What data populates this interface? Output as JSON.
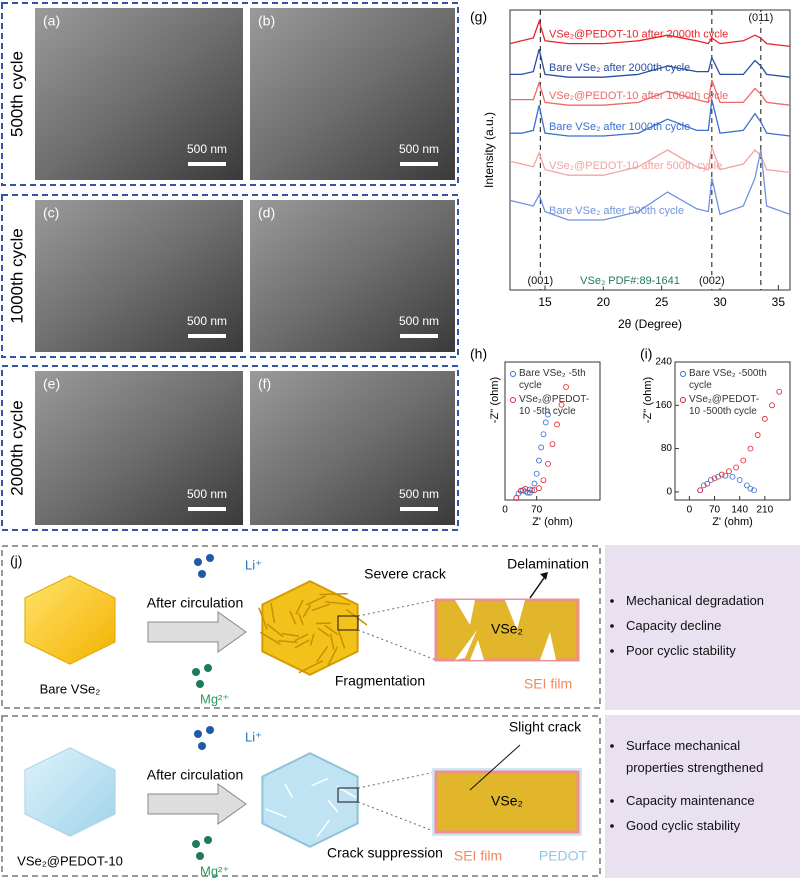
{
  "sem": {
    "rows": [
      {
        "label": "500th cycle",
        "images": [
          {
            "tag": "(a)",
            "scale": "500 nm"
          },
          {
            "tag": "(b)",
            "scale": "500 nm"
          }
        ]
      },
      {
        "label": "1000th cycle",
        "images": [
          {
            "tag": "(c)",
            "scale": "500 nm"
          },
          {
            "tag": "(d)",
            "scale": "500 nm"
          }
        ]
      },
      {
        "label": "2000th cycle",
        "images": [
          {
            "tag": "(e)",
            "scale": "500 nm"
          },
          {
            "tag": "(f)",
            "scale": "500 nm"
          }
        ]
      }
    ]
  },
  "chart_data": [
    {
      "type": "line",
      "panel": "(g)",
      "x_label": "2θ (Degree)",
      "y_label": "Intensity (a.u.)",
      "x": [
        12,
        13,
        14,
        14.5,
        15,
        17,
        20,
        23,
        25.5,
        28,
        29,
        29.3,
        30,
        32,
        33,
        33.5,
        34,
        36
      ],
      "series": [
        {
          "name": "VSe₂@PEDOT-10 after 2000th cycle",
          "color": "#e8242b",
          "values": [
            88,
            89,
            90,
            96,
            89,
            88,
            88,
            89,
            91,
            89,
            88,
            90,
            88,
            89,
            91,
            90,
            88,
            87
          ]
        },
        {
          "name": "Bare VSe₂ after 2000th cycle",
          "color": "#2b4ea2",
          "values": [
            77,
            77,
            78,
            86,
            77,
            76,
            76,
            77,
            80,
            78,
            78,
            83,
            77,
            77,
            82,
            80,
            77,
            76
          ]
        },
        {
          "name": "VSe₂@PEDOT-10 after 1000th cycle",
          "color": "#ec6a6a",
          "values": [
            68,
            68,
            68,
            74,
            67,
            66,
            66,
            67,
            71,
            68,
            67,
            75,
            67,
            67,
            72,
            70,
            67,
            66
          ]
        },
        {
          "name": "Bare VSe₂ after 1000th cycle",
          "color": "#3a6fd0",
          "values": [
            56,
            56,
            57,
            66,
            56,
            55,
            55,
            56,
            61,
            57,
            57,
            68,
            56,
            57,
            63,
            60,
            56,
            55
          ]
        },
        {
          "name": "VSe₂@PEDOT-10 after 500th cycle",
          "color": "#f2a3a3",
          "values": [
            46,
            45,
            44,
            49,
            43,
            41,
            41,
            44,
            50,
            44,
            43,
            51,
            43,
            45,
            50,
            48,
            43,
            42
          ]
        },
        {
          "name": "Bare VSe₂ after 500th cycle",
          "color": "#6f94e0",
          "values": [
            32,
            31,
            30,
            34,
            28,
            25,
            25,
            28,
            35,
            29,
            28,
            40,
            27,
            30,
            40,
            50,
            30,
            27
          ]
        }
      ],
      "ref_lines": [
        14.6,
        29.3,
        33.5
      ],
      "annotations": [
        "(011)",
        "(001)",
        "(002)",
        "VSe₂ PDF#:89-1641"
      ],
      "xlim": [
        12,
        36
      ],
      "xticks": [
        15,
        20,
        25,
        30,
        35
      ],
      "ylim": [
        0,
        100
      ]
    },
    {
      "type": "scatter",
      "panel": "(h)",
      "x_label": "Z' (ohm)",
      "y_label": "-Z'' (ohm)",
      "series": [
        {
          "name": "Bare VSe₂ -5th cycle",
          "color": "#3a6fd0",
          "x": [
            25,
            30,
            35,
            40,
            45,
            50,
            55,
            60,
            65,
            70,
            75,
            80,
            85,
            90,
            95
          ],
          "values": [
            3,
            10,
            14,
            15,
            13,
            11,
            11,
            15,
            25,
            40,
            60,
            80,
            100,
            118,
            130
          ]
        },
        {
          "name": "VSe₂@PEDOT-10 -5th cycle",
          "color": "#e8242b",
          "x": [
            25,
            35,
            45,
            55,
            65,
            75,
            85,
            95,
            105,
            115,
            125,
            135
          ],
          "values": [
            3,
            14,
            17,
            16,
            15,
            18,
            30,
            55,
            85,
            115,
            145,
            172
          ]
        }
      ],
      "xlim": [
        0,
        210
      ],
      "xticks": [
        0,
        70
      ],
      "ylim": [
        0,
        210
      ]
    },
    {
      "type": "scatter",
      "panel": "(i)",
      "x_label": "Z' (ohm)",
      "y_label": "-Z'' (ohm)",
      "series": [
        {
          "name": "Bare VSe₂ -500th cycle",
          "color": "#3a6fd0",
          "x": [
            30,
            40,
            60,
            80,
            100,
            120,
            140,
            160,
            170,
            180
          ],
          "values": [
            3,
            12,
            22,
            28,
            30,
            28,
            22,
            12,
            6,
            3
          ]
        },
        {
          "name": "VSe₂@PEDOT-10 -500th cycle",
          "color": "#e8242b",
          "x": [
            30,
            50,
            70,
            90,
            110,
            130,
            150,
            170,
            190,
            210,
            230,
            250
          ],
          "values": [
            3,
            15,
            25,
            32,
            38,
            45,
            58,
            80,
            105,
            135,
            160,
            185
          ]
        }
      ],
      "xlim": [
        -40,
        280
      ],
      "xticks": [
        0,
        70,
        140,
        210
      ],
      "ylim": [
        -15,
        240
      ],
      "yticks": [
        0,
        80,
        160,
        240
      ]
    }
  ],
  "schematic": {
    "panel": "(j)",
    "rows": [
      {
        "material": "Bare VSe₂",
        "ion1": "Li⁺",
        "ion2": "Mg²⁺",
        "process": "After circulation",
        "result": "Fragmentation",
        "crack": "Severe crack",
        "extra": "Delamination",
        "core": "VSe₂",
        "film": "SEI film",
        "bullets": [
          "Mechanical degradation",
          "Capacity decline",
          "Poor cyclic stability"
        ]
      },
      {
        "material": "VSe₂@PEDOT-10",
        "ion1": "Li⁺",
        "ion2": "Mg²⁺",
        "process": "After circulation",
        "result": "Crack suppression",
        "crack": "Slight crack",
        "core": "VSe₂",
        "film": "SEI film",
        "coating": "PEDOT",
        "bullets": [
          "Surface mechanical properties strengthened",
          "Capacity maintenance",
          "Good cyclic stability"
        ]
      }
    ]
  }
}
